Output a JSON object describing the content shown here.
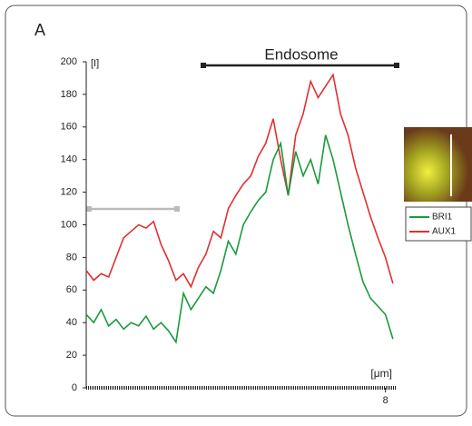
{
  "chart_data": {
    "type": "line",
    "panel_label": "A",
    "y_label": "[I]",
    "x_label": "[μm]",
    "annotation": "Endosome",
    "x": [
      0,
      0.2,
      0.4,
      0.6,
      0.8,
      1.0,
      1.2,
      1.4,
      1.6,
      1.8,
      2.0,
      2.2,
      2.4,
      2.6,
      2.8,
      3.0,
      3.2,
      3.4,
      3.6,
      3.8,
      4.0,
      4.2,
      4.4,
      4.6,
      4.8,
      5.0,
      5.2,
      5.4,
      5.6,
      5.8,
      6.0,
      6.2,
      6.4,
      6.6,
      6.8,
      7.0,
      7.2,
      7.4,
      7.6,
      7.8,
      8.0,
      8.2
    ],
    "series": [
      {
        "name": "BRI1",
        "color": "#1a9a3c",
        "values": [
          45,
          40,
          48,
          38,
          42,
          36,
          40,
          38,
          44,
          36,
          40,
          35,
          28,
          58,
          48,
          55,
          62,
          58,
          72,
          90,
          82,
          100,
          108,
          115,
          120,
          140,
          150,
          118,
          145,
          130,
          140,
          125,
          155,
          140,
          120,
          100,
          82,
          65,
          55,
          50,
          45,
          30
        ]
      },
      {
        "name": "AUX1",
        "color": "#e03030",
        "values": [
          72,
          66,
          70,
          68,
          80,
          92,
          96,
          100,
          98,
          102,
          88,
          78,
          66,
          70,
          62,
          74,
          82,
          96,
          92,
          110,
          118,
          125,
          130,
          142,
          150,
          165,
          140,
          118,
          155,
          168,
          188,
          178,
          185,
          192,
          168,
          155,
          135,
          120,
          105,
          92,
          80,
          64
        ]
      }
    ],
    "xlim": [
      0,
      8.3
    ],
    "xticks": [
      8
    ],
    "ylim": [
      0,
      200
    ],
    "yticks": [
      0,
      20,
      40,
      60,
      80,
      100,
      120,
      140,
      160,
      180,
      200
    ]
  }
}
